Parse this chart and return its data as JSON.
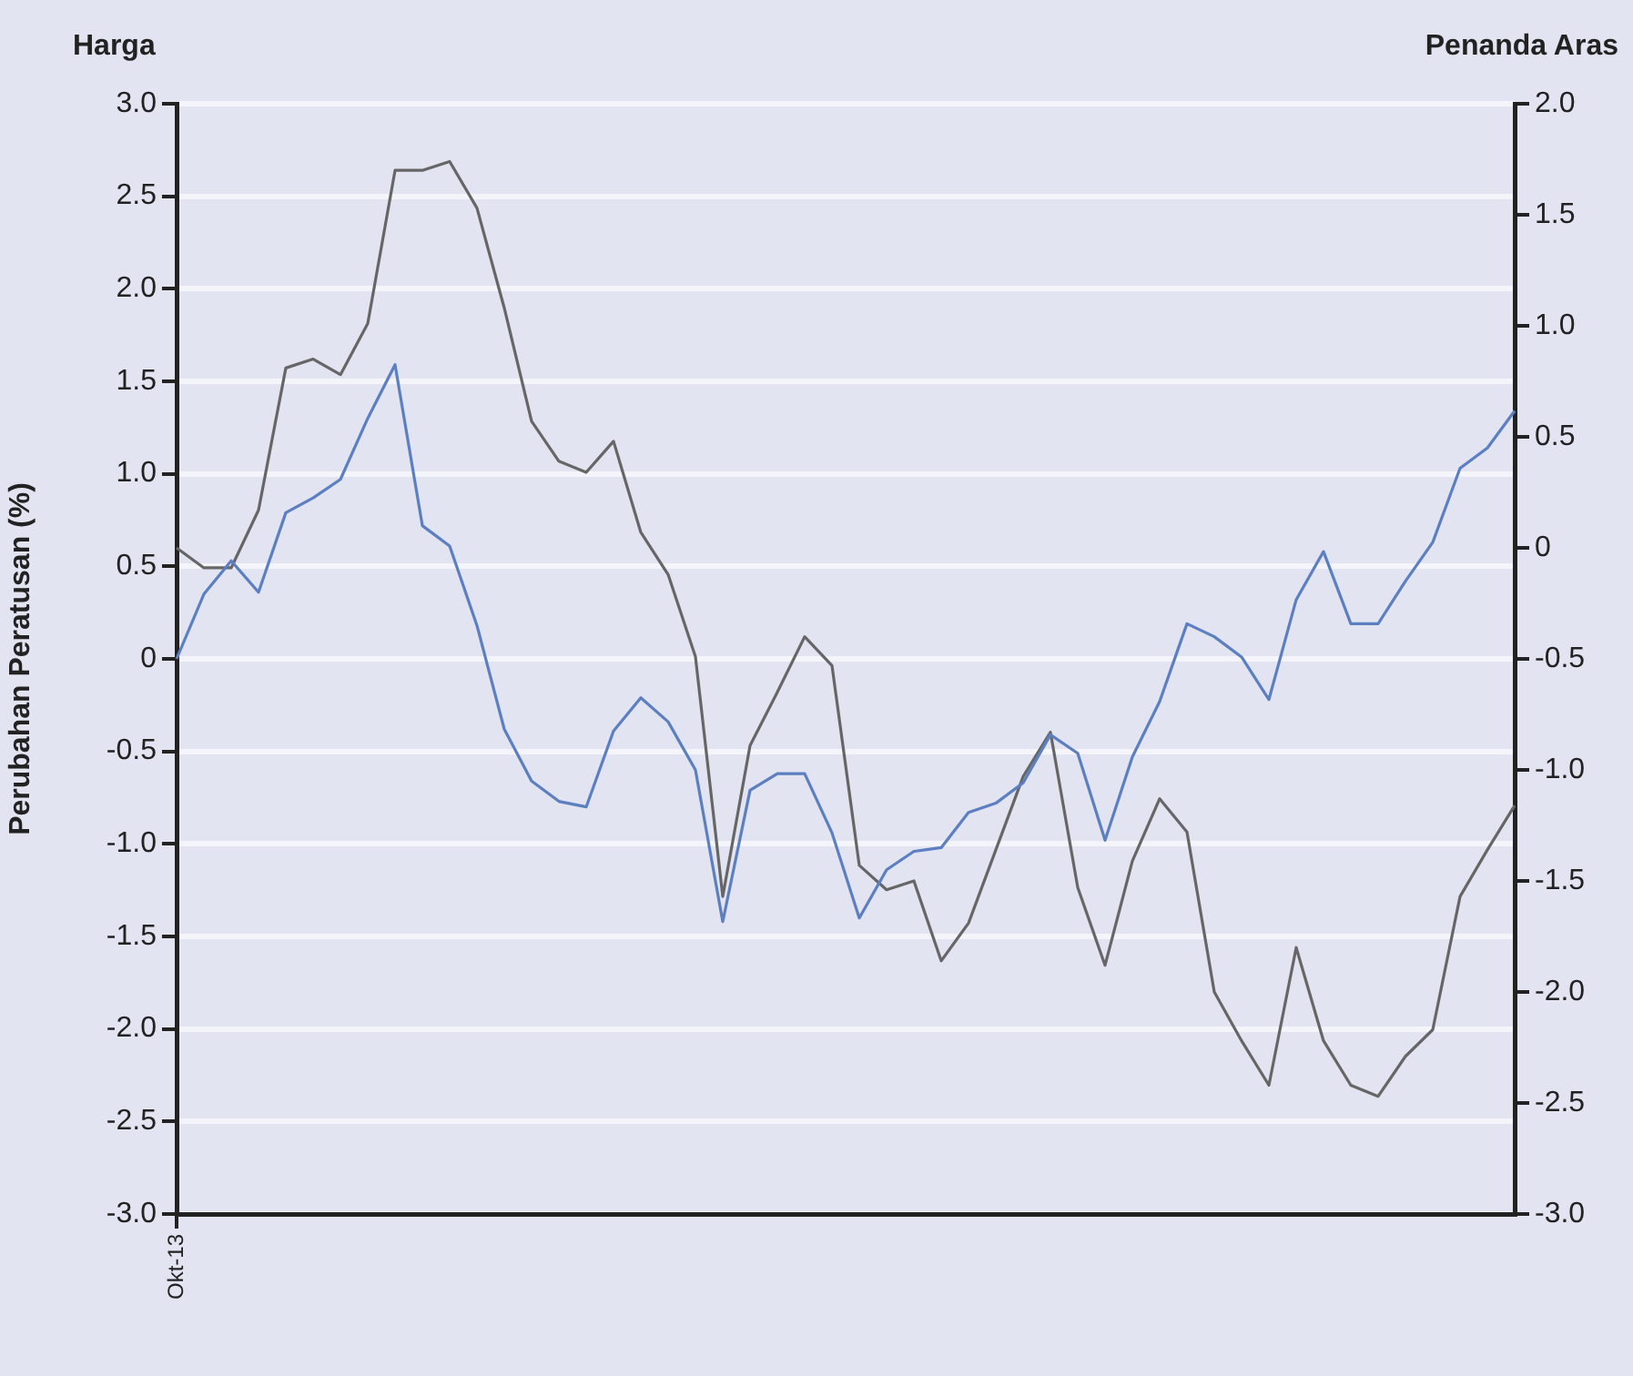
{
  "chart_data": {
    "type": "line",
    "ylabel": "Perubahan Peratusan (%)",
    "annotations": [
      "Harga",
      "Penanda Aras"
    ],
    "categories": [
      "Okt-13",
      null,
      null,
      null,
      null,
      null,
      null,
      null,
      null,
      null,
      null,
      null,
      null,
      null,
      null,
      null,
      null,
      null,
      null,
      null,
      null,
      null,
      null,
      null,
      null,
      null,
      null,
      null,
      null,
      null,
      null,
      null,
      null,
      null,
      null,
      null,
      null,
      null,
      null,
      null,
      null,
      null,
      null,
      null,
      null,
      null,
      null,
      null,
      null,
      null
    ],
    "series": [
      {
        "color": "#5b7fc0",
        "values": [
          0,
          0.35,
          0.53,
          0.36,
          0.79,
          0.87,
          0.97,
          1.3,
          1.59,
          0.72,
          0.61,
          0.18,
          -0.38,
          -0.66,
          -0.77,
          -0.8,
          -0.39,
          -0.21,
          -0.34,
          -0.6,
          -1.42,
          -0.71,
          -0.62,
          -0.62,
          -0.94,
          -1.4,
          -1.14,
          -1.04,
          -1.02,
          -0.83,
          -0.78,
          -0.67,
          -0.41,
          -0.51,
          -0.98,
          -0.53,
          -0.23,
          0.19,
          0.12,
          0.01,
          -0.22,
          0.32,
          0.58,
          0.19,
          0.19,
          0.42,
          0.63,
          1.03,
          1.14,
          1.34
        ]
      },
      {
        "color": "#666666",
        "axis": "y2",
        "values": [
          0,
          -0.09,
          -0.09,
          0.17,
          0.81,
          0.85,
          0.78,
          1.01,
          1.7,
          1.7,
          1.74,
          1.53,
          1.08,
          0.57,
          0.39,
          0.34,
          0.48,
          0.07,
          -0.12,
          -0.49,
          -1.57,
          -0.89,
          -0.65,
          -0.4,
          -0.53,
          -1.43,
          -1.54,
          -1.5,
          -1.86,
          -1.69,
          -1.36,
          -1.03,
          -0.83,
          -1.53,
          -1.88,
          -1.41,
          -1.13,
          -1.28,
          -2,
          -2.22,
          -2.42,
          -1.8,
          -2.22,
          -2.42,
          -2.47,
          -2.29,
          -2.17,
          -1.57,
          -1.36,
          -1.16
        ]
      }
    ],
    "ylim": [
      -3,
      3
    ],
    "yticks": [
      {
        "value": -3,
        "label": "-3.0"
      },
      {
        "value": -2.5,
        "label": "-2.5"
      },
      {
        "value": -2,
        "label": "-2.0"
      },
      {
        "value": -1.5,
        "label": "-1.5"
      },
      {
        "value": -1,
        "label": "-1.0"
      },
      {
        "value": -0.5,
        "label": "-0.5"
      },
      0,
      {
        "value": 0.5,
        "label": "0.5"
      },
      {
        "value": 1,
        "label": "1.0"
      },
      {
        "value": 1.5,
        "label": "1.5"
      },
      {
        "value": 2,
        "label": "2.0"
      },
      {
        "value": 2.5,
        "label": "2.5"
      },
      {
        "value": 3,
        "label": "3.0"
      }
    ],
    "y2lim": [
      -3,
      2
    ],
    "y2ticks": [
      {
        "value": -3,
        "label": "-3.0"
      },
      {
        "value": -2.5,
        "label": "-2.5"
      },
      {
        "value": -2,
        "label": "-2.0"
      },
      {
        "value": -1.5,
        "label": "-1.5"
      },
      {
        "value": -1,
        "label": "-1.0"
      },
      {
        "value": -0.5,
        "label": "-0.5"
      },
      0,
      {
        "value": 0.5,
        "label": "0.5"
      },
      {
        "value": 1,
        "label": "1.0"
      },
      {
        "value": 1.5,
        "label": "1.5"
      },
      {
        "value": 2,
        "label": "2.0"
      }
    ],
    "grid": "y"
  }
}
